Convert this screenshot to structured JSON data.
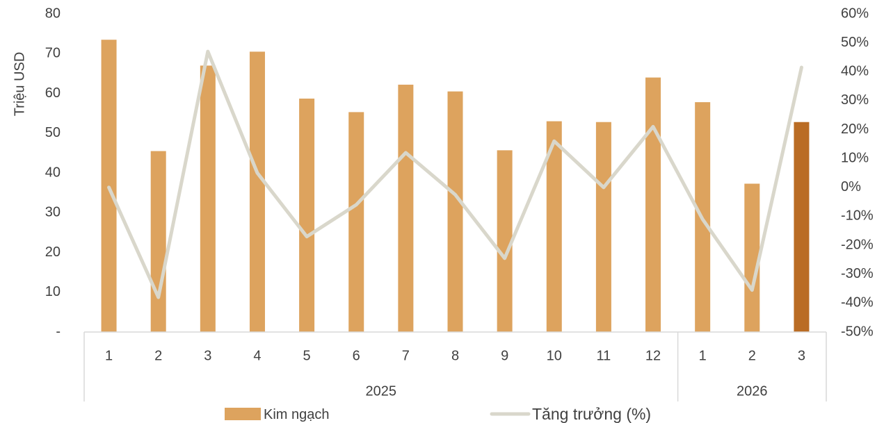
{
  "chart_data": {
    "type": "bar",
    "categories": [
      "1",
      "2",
      "3",
      "4",
      "5",
      "6",
      "7",
      "8",
      "9",
      "10",
      "11",
      "12",
      "1",
      "2",
      "3"
    ],
    "groups": [
      {
        "label": "2025",
        "count": 12
      },
      {
        "label": "2026",
        "count": 3
      }
    ],
    "series": [
      {
        "name": "Kim ngạch",
        "type": "bar",
        "axis": "left",
        "color": "#DDA35E",
        "highlight_color": "#BA6C24",
        "highlight_index": 14,
        "values": [
          73.5,
          45.5,
          67.0,
          70.5,
          58.7,
          55.3,
          62.2,
          60.5,
          45.7,
          53.0,
          52.8,
          64.0,
          57.8,
          37.3,
          52.8
        ]
      },
      {
        "name": "Tăng trưởng (%)",
        "type": "line",
        "axis": "right",
        "color": "#D9D7CB",
        "values": [
          0,
          -38,
          47,
          5,
          -17,
          -6,
          12,
          -2.5,
          -24.5,
          16,
          0,
          21,
          -11,
          -35.5,
          41.5
        ]
      }
    ],
    "ylabel": "Triệu USD",
    "ylim": [
      0,
      80
    ],
    "yticks": [
      "-",
      "10",
      "20",
      "30",
      "40",
      "50",
      "60",
      "70",
      "80"
    ],
    "y2lim": [
      -50,
      60
    ],
    "y2ticks": [
      "-50%",
      "-40%",
      "-30%",
      "-20%",
      "-10%",
      "0%",
      "10%",
      "20%",
      "30%",
      "40%",
      "50%",
      "60%"
    ],
    "grid": false,
    "legend": "bottom"
  }
}
